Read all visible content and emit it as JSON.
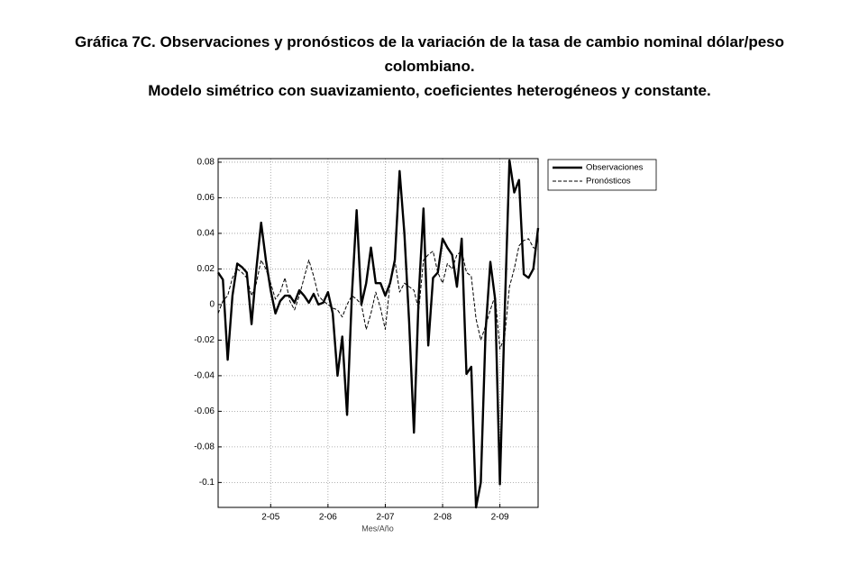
{
  "chart_data": {
    "type": "line",
    "title": "Gráfica 7C. Observaciones y pronósticos de la variación de la tasa de cambio nominal dólar/peso colombiano.",
    "subtitle": "Modelo simétrico con suavizamiento, coeficientes heterogéneos y constante.",
    "x_label": "Mes/Año",
    "categories": [
      null,
      null,
      null,
      null,
      null,
      null,
      null,
      null,
      null,
      null,
      null,
      "2-05",
      null,
      null,
      null,
      null,
      null,
      null,
      null,
      null,
      null,
      null,
      null,
      "2-06",
      null,
      null,
      null,
      null,
      null,
      null,
      null,
      null,
      null,
      null,
      null,
      "2-07",
      null,
      null,
      null,
      null,
      null,
      null,
      null,
      null,
      null,
      null,
      null,
      "2-08",
      null,
      null,
      null,
      null,
      null,
      null,
      null,
      null,
      null,
      null,
      null,
      "2-09",
      null,
      null,
      null,
      null,
      null,
      null,
      null,
      null
    ],
    "series": [
      {
        "name": "Observaciones",
        "color": "#000000",
        "line_style": "solid",
        "values": [
          0.018,
          0.014,
          -0.031,
          0.005,
          0.023,
          0.021,
          0.018,
          -0.011,
          0.02,
          0.046,
          0.025,
          0.008,
          -0.005,
          0.002,
          0.005,
          0.005,
          0.001,
          0.008,
          0.005,
          0.001,
          0.006,
          0.0,
          0.001,
          0.007,
          -0.005,
          -0.04,
          -0.018,
          -0.062,
          0.005,
          0.053,
          0.0,
          0.012,
          0.032,
          0.012,
          0.012,
          0.005,
          0.012,
          0.025,
          0.075,
          0.04,
          -0.01,
          -0.072,
          0.005,
          0.054,
          -0.023,
          0.015,
          0.018,
          0.037,
          0.032,
          0.028,
          0.01,
          0.037,
          -0.039,
          -0.035,
          -0.114,
          -0.1,
          -0.015,
          0.024,
          0.003,
          -0.101,
          -0.005,
          0.081,
          0.063,
          0.07,
          0.017,
          0.015,
          0.02,
          0.043
        ]
      },
      {
        "name": "Pronósticos",
        "color": "#000000",
        "line_style": "dashed",
        "values": [
          -0.005,
          0.002,
          0.005,
          0.015,
          0.02,
          0.018,
          0.015,
          0.005,
          0.012,
          0.025,
          0.02,
          0.012,
          0.003,
          0.007,
          0.015,
          0.002,
          -0.003,
          0.005,
          0.015,
          0.025,
          0.016,
          0.005,
          0.002,
          0.0,
          -0.002,
          -0.003,
          -0.007,
          0.0,
          0.005,
          0.003,
          0.0,
          -0.014,
          -0.005,
          0.007,
          -0.002,
          -0.014,
          0.012,
          0.025,
          0.007,
          0.012,
          0.01,
          0.008,
          -0.003,
          0.025,
          0.028,
          0.03,
          0.018,
          0.012,
          0.023,
          0.02,
          0.028,
          0.03,
          0.018,
          0.016,
          -0.008,
          -0.02,
          -0.012,
          -0.003,
          0.005,
          -0.025,
          -0.018,
          0.01,
          0.02,
          0.033,
          0.036,
          0.037,
          0.032,
          0.031
        ]
      }
    ],
    "ylim": [
      -0.114,
      0.082
    ],
    "yticks": [
      0.08,
      0.06,
      0.04,
      0.02,
      0,
      -0.02,
      -0.04,
      -0.06,
      -0.08,
      -0.1
    ],
    "grid": true,
    "legend": "outside-right"
  }
}
